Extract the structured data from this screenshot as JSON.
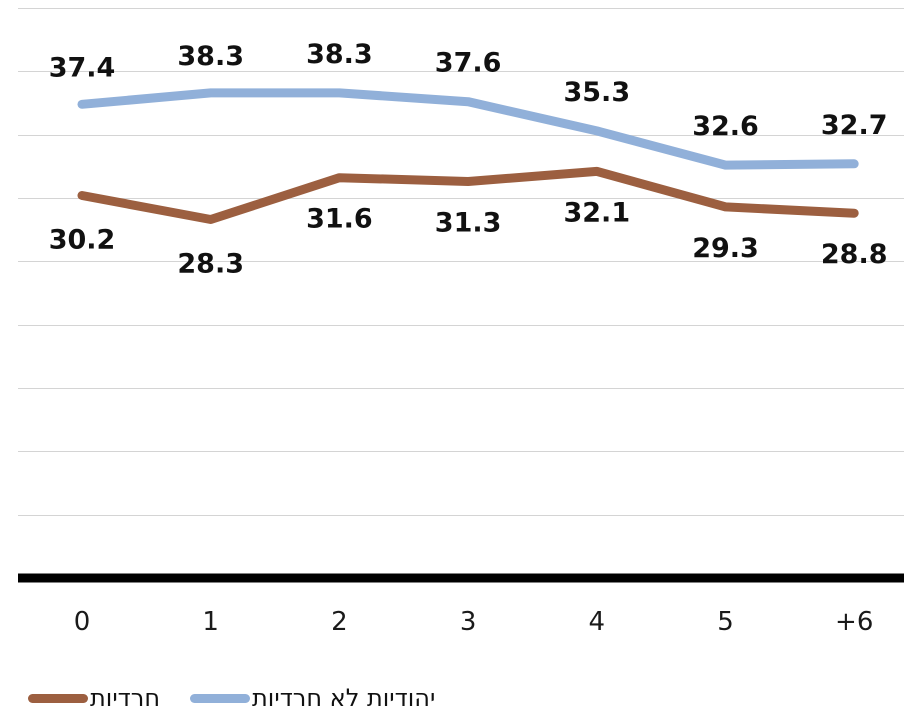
{
  "chart_data": {
    "type": "line",
    "categories": [
      "0",
      "1",
      "2",
      "3",
      "4",
      "5",
      "+6"
    ],
    "series": [
      {
        "name": "יהודיות לא חרדיות",
        "color": "#91b0d9",
        "values": [
          37.4,
          38.3,
          38.3,
          37.6,
          35.3,
          32.6,
          32.7
        ]
      },
      {
        "name": "חרדיות",
        "color": "#9c5f40",
        "values": [
          30.2,
          28.3,
          31.6,
          31.3,
          32.1,
          29.3,
          28.8
        ]
      }
    ],
    "ylim": [
      0,
      45
    ],
    "grid": true,
    "legend": "bottom-left",
    "axis_color": "#000000"
  }
}
